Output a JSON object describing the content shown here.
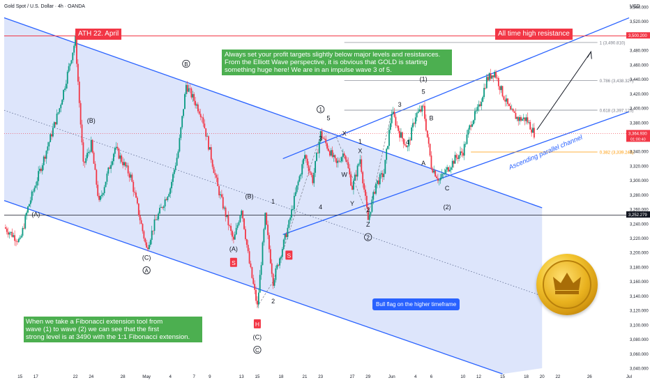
{
  "header": {
    "title": "Gold Spot / U.S. Dollar · 4h · OANDA",
    "currency": "USD"
  },
  "chart_data": {
    "type": "candlestick",
    "y_axis": {
      "range": [
        3040,
        3540
      ],
      "ticks": [
        3040,
        3060,
        3080,
        3100,
        3120,
        3140,
        3160,
        3180,
        3200,
        3220,
        3240,
        3260,
        3280,
        3300,
        3320,
        3340,
        3360,
        3380,
        3400,
        3420,
        3440,
        3460,
        3480,
        3500,
        3520,
        3540
      ],
      "tick_labels": [
        "3,040.000",
        "3,060.000",
        "3,080.000",
        "3,100.000",
        "3,120.000",
        "3,140.000",
        "3,160.000",
        "3,180.000",
        "3,200.000",
        "3,220.000",
        "3,240.000",
        "3,260.000",
        "3,280.000",
        "3,300.000",
        "3,320.000",
        "3,340.000",
        "3,360.000",
        "3,380.000",
        "3,400.000",
        "3,420.000",
        "3,440.000",
        "3,460.000",
        "3,480.000",
        "3,500.000",
        "3,520.000",
        "3,540.000"
      ],
      "scale": "linear"
    },
    "x_axis": {
      "tick_labels": [
        "15",
        "17",
        "22",
        "24",
        "28",
        "May",
        "4",
        "7",
        "9",
        "13",
        "15",
        "18",
        "21",
        "23",
        "27",
        "29",
        "Jun",
        "4",
        "6",
        "10",
        "12",
        "15",
        "18",
        "20",
        "22",
        "26",
        "Jul"
      ],
      "tick_label_dates": [
        "2025-04-15",
        "2025-04-17",
        "2025-04-22",
        "2025-04-24",
        "2025-04-28",
        "2025-05-01",
        "2025-05-04",
        "2025-05-07",
        "2025-05-09",
        "2025-05-13",
        "2025-05-15",
        "2025-05-18",
        "2025-05-21",
        "2025-05-23",
        "2025-05-27",
        "2025-05-29",
        "2025-06-01",
        "2025-06-04",
        "2025-06-06",
        "2025-06-10",
        "2025-06-12",
        "2025-06-15",
        "2025-06-18",
        "2025-06-20",
        "2025-06-22",
        "2025-06-26",
        "2025-07-01"
      ],
      "range": [
        "2025-04-13",
        "2025-07-01"
      ]
    },
    "price_path": [
      {
        "date": "2025-04-13",
        "price": 3235
      },
      {
        "date": "2025-04-15",
        "price": 3215
      },
      {
        "date": "2025-04-16",
        "price": 3262
      },
      {
        "date": "2025-04-18",
        "price": 3330
      },
      {
        "date": "2025-04-20",
        "price": 3400
      },
      {
        "date": "2025-04-22",
        "price": 3495
      },
      {
        "date": "2025-04-23",
        "price": 3320
      },
      {
        "date": "2025-04-24",
        "price": 3350
      },
      {
        "date": "2025-04-25",
        "price": 3268
      },
      {
        "date": "2025-04-27",
        "price": 3345
      },
      {
        "date": "2025-04-29",
        "price": 3305
      },
      {
        "date": "2025-05-01",
        "price": 3205
      },
      {
        "date": "2025-05-02",
        "price": 3240
      },
      {
        "date": "2025-05-04",
        "price": 3290
      },
      {
        "date": "2025-05-05",
        "price": 3340
      },
      {
        "date": "2025-05-06",
        "price": 3432
      },
      {
        "date": "2025-05-08",
        "price": 3390
      },
      {
        "date": "2025-05-10",
        "price": 3290
      },
      {
        "date": "2025-05-12",
        "price": 3215
      },
      {
        "date": "2025-05-13",
        "price": 3262
      },
      {
        "date": "2025-05-14",
        "price": 3185
      },
      {
        "date": "2025-05-15",
        "price": 3125
      },
      {
        "date": "2025-05-16",
        "price": 3250
      },
      {
        "date": "2025-05-17",
        "price": 3160
      },
      {
        "date": "2025-05-18",
        "price": 3200
      },
      {
        "date": "2025-05-19",
        "price": 3240
      },
      {
        "date": "2025-05-20",
        "price": 3290
      },
      {
        "date": "2025-05-21",
        "price": 3335
      },
      {
        "date": "2025-05-22",
        "price": 3300
      },
      {
        "date": "2025-05-23",
        "price": 3365
      },
      {
        "date": "2025-05-25",
        "price": 3322
      },
      {
        "date": "2025-05-26",
        "price": 3340
      },
      {
        "date": "2025-05-27",
        "price": 3290
      },
      {
        "date": "2025-05-28",
        "price": 3330
      },
      {
        "date": "2025-05-29",
        "price": 3245
      },
      {
        "date": "2025-05-30",
        "price": 3295
      },
      {
        "date": "2025-05-31",
        "price": 3310
      },
      {
        "date": "2025-06-01",
        "price": 3395
      },
      {
        "date": "2025-06-02",
        "price": 3365
      },
      {
        "date": "2025-06-03",
        "price": 3345
      },
      {
        "date": "2025-06-04",
        "price": 3390
      },
      {
        "date": "2025-06-05",
        "price": 3400
      },
      {
        "date": "2025-06-06",
        "price": 3320
      },
      {
        "date": "2025-06-07",
        "price": 3300
      },
      {
        "date": "2025-06-09",
        "price": 3330
      },
      {
        "date": "2025-06-10",
        "price": 3340
      },
      {
        "date": "2025-06-11",
        "price": 3380
      },
      {
        "date": "2025-06-12",
        "price": 3400
      },
      {
        "date": "2025-06-13",
        "price": 3440
      },
      {
        "date": "2025-06-14",
        "price": 3450
      },
      {
        "date": "2025-06-15",
        "price": 3420
      },
      {
        "date": "2025-06-16",
        "price": 3395
      },
      {
        "date": "2025-06-17",
        "price": 3385
      },
      {
        "date": "2025-06-18",
        "price": 3385
      },
      {
        "date": "2025-06-19",
        "price": 3365
      }
    ],
    "lines": [
      {
        "name": "descending channel upper",
        "from": {
          "date": "2025-04-13",
          "price": 3525
        },
        "to": {
          "date": "2025-06-20",
          "price": 3262
        }
      },
      {
        "name": "descending channel lower",
        "from": {
          "date": "2025-04-13",
          "price": 3272
        },
        "to": {
          "date": "2025-06-15",
          "price": 3032
        }
      },
      {
        "name": "descending channel midline",
        "from": {
          "date": "2025-04-13",
          "price": 3397
        },
        "to": {
          "date": "2025-06-20",
          "price": 3140
        }
      },
      {
        "name": "ascending channel lower",
        "from": {
          "date": "2025-05-20",
          "price": 3225
        },
        "to": {
          "date": "2025-07-01",
          "price": 3395
        }
      },
      {
        "name": "ascending channel upper",
        "from": {
          "date": "2025-05-20",
          "price": 3330
        },
        "to": {
          "date": "2025-07-01",
          "price": 3525
        }
      },
      {
        "name": "all time high resistance",
        "from": {
          "date": "2025-04-13",
          "price": 3500
        },
        "to": {
          "date": "2025-07-01",
          "price": 3500
        }
      },
      {
        "name": "current price",
        "from": {
          "date": "2025-04-13",
          "price": 3365
        },
        "to": {
          "date": "2025-07-01",
          "price": 3365
        }
      },
      {
        "name": "level 3252.279",
        "from": {
          "date": "2025-04-13",
          "price": 3252
        },
        "to": {
          "date": "2025-07-01",
          "price": 3252
        }
      }
    ],
    "fib_levels": [
      {
        "label": "1 (3,490.810)",
        "price": 3490.81
      },
      {
        "label": "0.786 (3,438.327)",
        "price": 3438.327
      },
      {
        "label": "0.618 (3,397.125)",
        "price": 3397.125
      },
      {
        "label": "0.382 (3,339.246)",
        "price": 3339.246
      }
    ],
    "price_tags": [
      {
        "text": "3,500.200",
        "price": 3500.2,
        "color": "#f23645"
      },
      {
        "text": "3,364.930",
        "sub": "01:00:40",
        "price": 3364.93,
        "color": "#f23645"
      },
      {
        "text": "3,252.279",
        "price": 3252.279,
        "color": "#131722"
      }
    ],
    "wave_labels": [
      {
        "text": "(A)",
        "date": "2025-04-17",
        "price": 3250
      },
      {
        "text": "(B)",
        "date": "2025-04-24",
        "price": 3380
      },
      {
        "text": "(C)",
        "date": "2025-05-01",
        "price": 3190
      },
      {
        "text": "A",
        "date": "2025-05-01",
        "price": 3172,
        "circle": true
      },
      {
        "text": "B",
        "date": "2025-05-06",
        "price": 3458,
        "circle": true
      },
      {
        "text": "(A)",
        "date": "2025-05-12",
        "price": 3202
      },
      {
        "text": "(B)",
        "date": "2025-05-14",
        "price": 3275
      },
      {
        "text": "1",
        "date": "2025-05-17",
        "price": 3268
      },
      {
        "text": "2",
        "date": "2025-05-17",
        "price": 3130
      },
      {
        "text": "(C)",
        "date": "2025-05-15",
        "price": 3080
      },
      {
        "text": "C",
        "date": "2025-05-15",
        "price": 3062,
        "circle": true
      },
      {
        "text": "1",
        "date": "2025-05-23",
        "price": 3395,
        "circle": true
      },
      {
        "text": "3",
        "date": "2025-05-23",
        "price": 3355
      },
      {
        "text": "4",
        "date": "2025-05-23",
        "price": 3260
      },
      {
        "text": "5",
        "date": "2025-05-24",
        "price": 3383
      },
      {
        "text": "X",
        "date": "2025-05-26",
        "price": 3362
      },
      {
        "text": "W",
        "date": "2025-05-26",
        "price": 3305
      },
      {
        "text": "1",
        "date": "2025-05-28",
        "price": 3351
      },
      {
        "text": "X",
        "date": "2025-05-28",
        "price": 3338
      },
      {
        "text": "Y",
        "date": "2025-05-27",
        "price": 3265
      },
      {
        "text": "2",
        "date": "2025-05-29",
        "price": 3256
      },
      {
        "text": "Z",
        "date": "2025-05-29",
        "price": 3236
      },
      {
        "text": "2",
        "date": "2025-05-29",
        "price": 3218,
        "circle": true
      },
      {
        "text": "3",
        "date": "2025-06-02",
        "price": 3402
      },
      {
        "text": "4",
        "date": "2025-06-03",
        "price": 3350
      },
      {
        "text": "5",
        "date": "2025-06-05",
        "price": 3420
      },
      {
        "text": "(1)",
        "date": "2025-06-05",
        "price": 3437
      },
      {
        "text": "B",
        "date": "2025-06-06",
        "price": 3383
      },
      {
        "text": "A",
        "date": "2025-06-05",
        "price": 3321
      },
      {
        "text": "C",
        "date": "2025-06-08",
        "price": 3286
      },
      {
        "text": "(2)",
        "date": "2025-06-08",
        "price": 3260
      }
    ],
    "signal_tags": [
      {
        "text": "S",
        "date": "2025-05-12",
        "price": 3185,
        "color": "#f23645"
      },
      {
        "text": "S",
        "date": "2025-05-19",
        "price": 3195,
        "color": "#f23645"
      },
      {
        "text": "H",
        "date": "2025-05-15",
        "price": 3100,
        "color": "#f23645"
      }
    ],
    "annotations": [
      {
        "name": "ath-label",
        "text": "ATH 22. April",
        "bg": "#f23645"
      },
      {
        "name": "ath-resistance-label",
        "text": "All time high resistance",
        "bg": "#f23645"
      },
      {
        "name": "profit-target-note",
        "text_lines": [
          "Always set your profit targets slightly below major levels and resistances.",
          "From the Elliott Wave perspective, it is obvious that GOLD is starting",
          "something huge here! We are in an impulse wave 3 of 5."
        ],
        "bg": "#4caf50"
      },
      {
        "name": "fibonacci-note",
        "text_lines": [
          "When we take a Fibonacci extension tool from",
          "wave (1) to wave (2) we can see that the first",
          "strong level is at 3490 with the 1:1 Fibonacci extension."
        ],
        "bg": "#4caf50"
      },
      {
        "name": "bull-flag-callout",
        "text": "Bull flag on the higher timeframe",
        "bg": "#2962ff"
      },
      {
        "name": "ascending-channel-label",
        "text": "Ascending parallel channel",
        "color": "#2962ff"
      }
    ],
    "colors": {
      "up": "#089981",
      "down": "#f23645",
      "channel": "#2962ff",
      "fill": "#dbe4fb",
      "fib": "#787b86",
      "fib_382": "#ff9800"
    },
    "grid": false,
    "legend": "none"
  }
}
